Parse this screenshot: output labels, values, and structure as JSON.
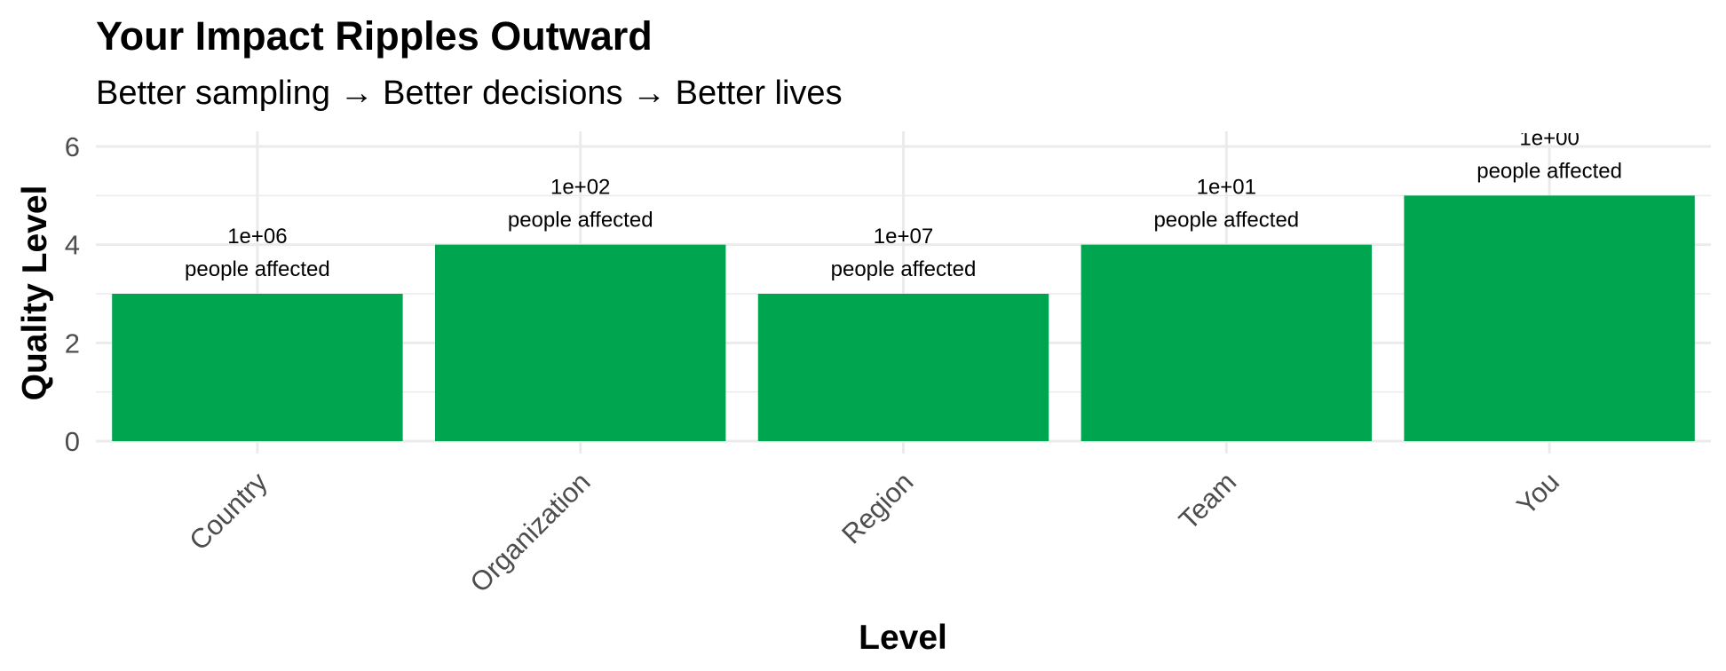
{
  "chart_data": {
    "type": "bar",
    "title": "Your Impact Ripples Outward",
    "subtitle": "Better sampling → Better decisions → Better lives",
    "xlabel": "Level",
    "ylabel": "Quality Level",
    "categories": [
      "Country",
      "Organization",
      "Region",
      "Team",
      "You"
    ],
    "values": [
      3,
      4,
      3,
      4,
      5
    ],
    "data_labels": [
      [
        "1e+06",
        "people affected"
      ],
      [
        "1e+02",
        "people affected"
      ],
      [
        "1e+07",
        "people affected"
      ],
      [
        "1e+01",
        "people affected"
      ],
      [
        "1e+00",
        "people affected"
      ]
    ],
    "y_ticks": [
      "0",
      "2",
      "4",
      "6"
    ],
    "ylim": [
      0,
      6
    ],
    "grid": true,
    "legend": "none",
    "bar_color": "#00A550",
    "grid_color": "#EBEBEB",
    "tick_label_color": "#4D4D4D"
  }
}
